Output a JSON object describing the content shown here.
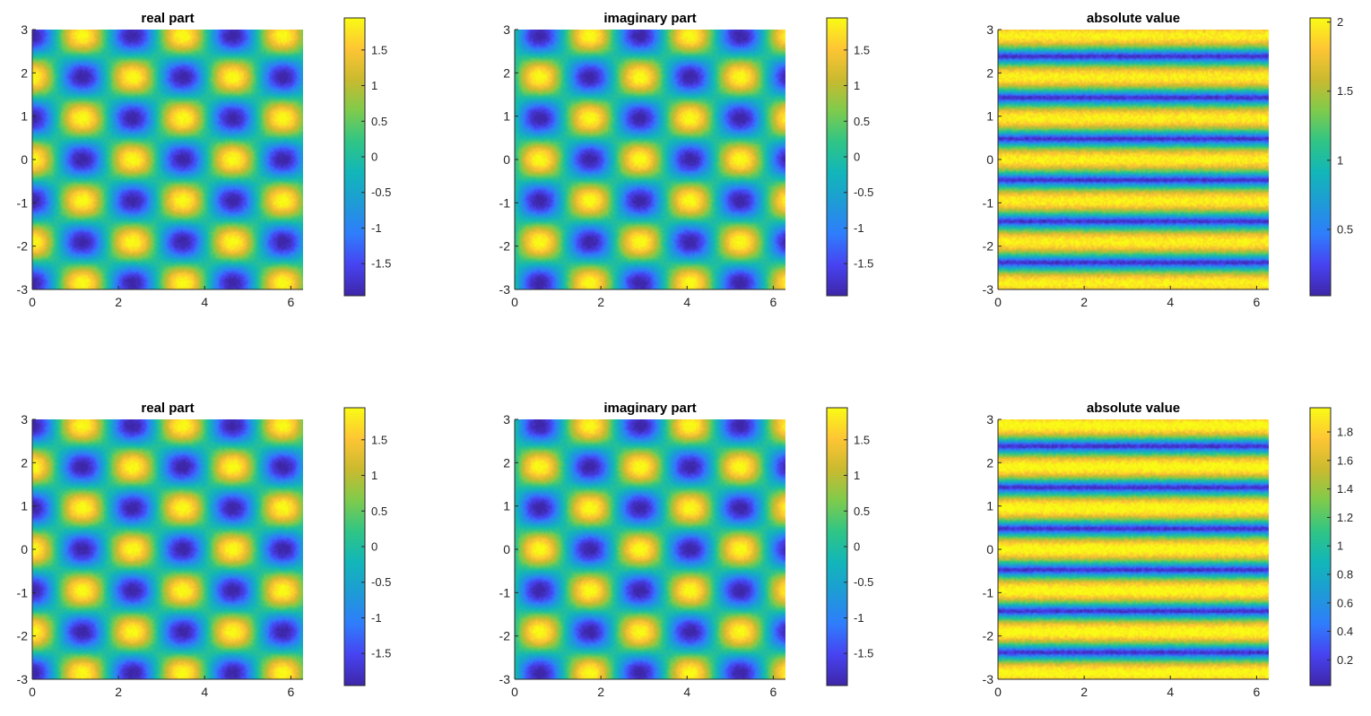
{
  "colormap": [
    "#3e26a8",
    "#4743f1",
    "#2f7dfc",
    "#1e9bd6",
    "#12b6b9",
    "#30c585",
    "#7fcb4c",
    "#caba2f",
    "#fec534",
    "#f9fb15"
  ],
  "chart_data": [
    {
      "type": "heatmap",
      "title": "real part",
      "pattern": "real",
      "xlim": [
        0,
        6.2832
      ],
      "ylim": [
        -3,
        3
      ],
      "xticks": [
        "0",
        "2",
        "4",
        "6"
      ],
      "yticks": [
        "-3",
        "-2",
        "-1",
        "0",
        "1",
        "2",
        "3"
      ],
      "clim": [
        -1.95,
        1.95
      ],
      "colorbar_ticks": [
        "-1.5",
        "-1",
        "-0.5",
        "0",
        "0.5",
        "1",
        "1.5"
      ],
      "grid": false
    },
    {
      "type": "heatmap",
      "title": "imaginary part",
      "pattern": "imag",
      "xlim": [
        0,
        6.2832
      ],
      "ylim": [
        -3,
        3
      ],
      "xticks": [
        "0",
        "2",
        "4",
        "6"
      ],
      "yticks": [
        "-3",
        "-2",
        "-1",
        "0",
        "1",
        "2",
        "3"
      ],
      "clim": [
        -1.95,
        1.95
      ],
      "colorbar_ticks": [
        "-1.5",
        "-1",
        "-0.5",
        "0",
        "0.5",
        "1",
        "1.5"
      ],
      "grid": false
    },
    {
      "type": "heatmap",
      "title": "absolute value",
      "pattern": "abs",
      "xlim": [
        0,
        6.2832
      ],
      "ylim": [
        -3,
        3
      ],
      "xticks": [
        "0",
        "2",
        "4",
        "6"
      ],
      "yticks": [
        "-3",
        "-2",
        "-1",
        "0",
        "1",
        "2",
        "3"
      ],
      "clim": [
        0.02,
        2.03
      ],
      "colorbar_ticks": [
        "0.5",
        "1",
        "1.5",
        "2"
      ],
      "grid": false
    },
    {
      "type": "heatmap",
      "title": "real part",
      "pattern": "real",
      "xlim": [
        0,
        6.2832
      ],
      "ylim": [
        -3,
        3
      ],
      "xticks": [
        "0",
        "2",
        "4",
        "6"
      ],
      "yticks": [
        "-3",
        "-2",
        "-1",
        "0",
        "1",
        "2",
        "3"
      ],
      "clim": [
        -1.95,
        1.95
      ],
      "colorbar_ticks": [
        "-1.5",
        "-1",
        "-0.5",
        "0",
        "0.5",
        "1",
        "1.5"
      ],
      "grid": false
    },
    {
      "type": "heatmap",
      "title": "imaginary part",
      "pattern": "imag",
      "xlim": [
        0,
        6.2832
      ],
      "ylim": [
        -3,
        3
      ],
      "xticks": [
        "0",
        "2",
        "4",
        "6"
      ],
      "yticks": [
        "-3",
        "-2",
        "-1",
        "0",
        "1",
        "2",
        "3"
      ],
      "clim": [
        -1.95,
        1.95
      ],
      "colorbar_ticks": [
        "-1.5",
        "-1",
        "-0.5",
        "0",
        "0.5",
        "1",
        "1.5"
      ],
      "grid": false
    },
    {
      "type": "heatmap",
      "title": "absolute value",
      "pattern": "abs",
      "xlim": [
        0,
        6.2832
      ],
      "ylim": [
        -3,
        3
      ],
      "xticks": [
        "0",
        "2",
        "4",
        "6"
      ],
      "yticks": [
        "-3",
        "-2",
        "-1",
        "0",
        "1",
        "2",
        "3"
      ],
      "clim": [
        0.02,
        1.97
      ],
      "colorbar_ticks": [
        "0.2",
        "0.4",
        "0.6",
        "0.8",
        "1",
        "1.2",
        "1.4",
        "1.6",
        "1.8"
      ],
      "grid": false
    }
  ]
}
